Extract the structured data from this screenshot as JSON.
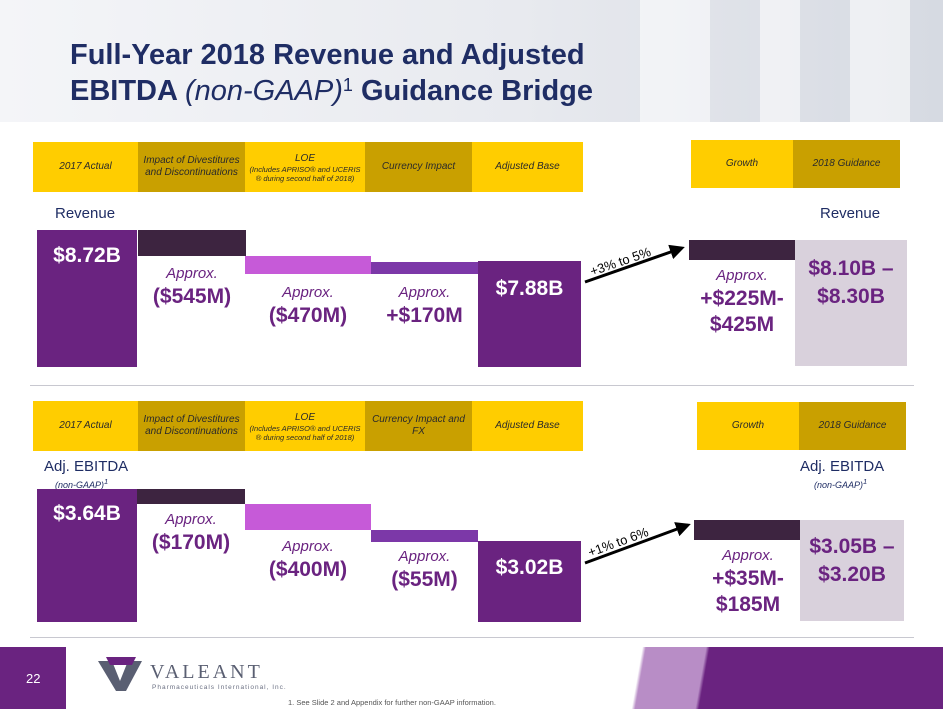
{
  "slide": {
    "title_line1": "Full-Year 2018 Revenue and Adjusted",
    "title_line2_bold": "EBITDA ",
    "title_line2_italic": "(non-GAAP)",
    "title_footnote_mark": "1",
    "title_line2_end": " Guidance Bridge",
    "page_number": "22",
    "footnote": "1.  See Slide 2 and Appendix for further non-GAAP information.",
    "logo_name": "VALEANT",
    "logo_sub": "Pharmaceuticals International, Inc."
  },
  "revenue_headers": {
    "actual": "2017 Actual",
    "divest": "Impact of Divestitures and Discontinuations",
    "loe_title": "LOE",
    "loe_note": "(Includes APRISO® and UCERIS ® during second half of 2018)",
    "currency": "Currency Impact",
    "adjusted": "Adjusted Base",
    "growth": "Growth",
    "guidance": "2018 Guidance"
  },
  "ebitda_headers": {
    "actual": "2017 Actual",
    "divest": "Impact of Divestitures and Discontinuations",
    "loe_title": "LOE",
    "loe_note": "(Includes APRISO® and UCERIS ® during second half of 2018)",
    "currency": "Currency Impact and FX",
    "adjusted": "Adjusted Base",
    "growth": "Growth",
    "guidance": "2018 Guidance"
  },
  "labels": {
    "revenue_left": "Revenue",
    "revenue_right": "Revenue",
    "ebitda_left": "Adj. EBITDA",
    "ebitda_left_sub": "(non-GAAP)",
    "ebitda_right": "Adj. EBITDA",
    "ebitda_right_sub": "(non-GAAP)",
    "sub_mark": "1"
  },
  "colors": {
    "title_navy": "#1f2d64",
    "purple_dark": "#6a2380",
    "purple_light": "#c65ad8",
    "yellow": "#ffcd00",
    "gold": "#c9a000",
    "guidance_grey": "#d9d1dc"
  },
  "chart_data": [
    {
      "type": "waterfall",
      "title": "Revenue",
      "units": "$B",
      "steps": [
        {
          "category": "2017 Actual",
          "value": 8.72,
          "kind": "total",
          "approx_label": "",
          "amount_label": "$8.72B"
        },
        {
          "category": "Impact of Divestitures and Discontinuations",
          "value": -0.545,
          "kind": "delta",
          "approx_label": "Approx.",
          "amount_label": "($545M)"
        },
        {
          "category": "LOE",
          "value": -0.47,
          "kind": "delta",
          "approx_label": "Approx.",
          "amount_label": "($470M)"
        },
        {
          "category": "Currency Impact",
          "value": 0.17,
          "kind": "delta",
          "approx_label": "Approx.",
          "amount_label": "+$170M"
        },
        {
          "category": "Adjusted Base",
          "value": 7.88,
          "kind": "total",
          "approx_label": "",
          "amount_label": "$7.88B"
        },
        {
          "category": "Growth",
          "value_low": 0.225,
          "value_high": 0.425,
          "kind": "delta",
          "approx_label": "Approx.",
          "amount_label_1": "+$225M-",
          "amount_label_2": "$425M"
        },
        {
          "category": "2018 Guidance",
          "value_low": 8.1,
          "value_high": 8.3,
          "kind": "total",
          "amount_label_1": "$8.10B –",
          "amount_label_2": "$8.30B"
        }
      ],
      "growth_annotation": "+3% to 5%"
    },
    {
      "type": "waterfall",
      "title": "Adj. EBITDA (non-GAAP)",
      "units": "$B",
      "steps": [
        {
          "category": "2017 Actual",
          "value": 3.64,
          "kind": "total",
          "approx_label": "",
          "amount_label": "$3.64B"
        },
        {
          "category": "Impact of Divestitures and Discontinuations",
          "value": -0.17,
          "kind": "delta",
          "approx_label": "Approx.",
          "amount_label": "($170M)"
        },
        {
          "category": "LOE",
          "value": -0.4,
          "kind": "delta",
          "approx_label": "Approx.",
          "amount_label": "($400M)"
        },
        {
          "category": "Currency Impact and FX",
          "value": -0.055,
          "kind": "delta",
          "approx_label": "Approx.",
          "amount_label": "($55M)"
        },
        {
          "category": "Adjusted Base",
          "value": 3.02,
          "kind": "total",
          "approx_label": "",
          "amount_label": "$3.02B"
        },
        {
          "category": "Growth",
          "value_low": 0.035,
          "value_high": 0.185,
          "kind": "delta",
          "approx_label": "Approx.",
          "amount_label_1": "+$35M-",
          "amount_label_2": "$185M"
        },
        {
          "category": "2018 Guidance",
          "value_low": 3.05,
          "value_high": 3.2,
          "kind": "total",
          "amount_label_1": "$3.05B –",
          "amount_label_2": "$3.20B"
        }
      ],
      "growth_annotation": "+1% to 6%"
    }
  ]
}
